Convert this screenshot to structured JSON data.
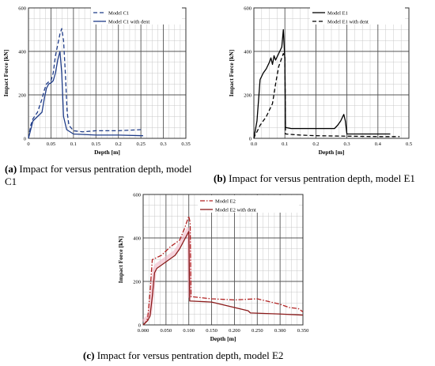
{
  "chart_data": [
    {
      "id": "c1",
      "type": "line",
      "xlabel": "Depth [m]",
      "ylabel": "Impact Force [kN]",
      "xlim": [
        0,
        0.35
      ],
      "ylim": [
        0,
        600
      ],
      "xticks": [
        0,
        0.05,
        0.1,
        0.15,
        0.2,
        0.25,
        0.3,
        0.35
      ],
      "xtick_labels": [
        "0",
        "0.05",
        "0.1",
        "0.15",
        "0.2",
        "0.25",
        "0.3",
        "0.35"
      ],
      "yticks": [
        0,
        200,
        400,
        600
      ],
      "ytick_labels": [
        "0",
        "200",
        "400",
        "600"
      ],
      "minor_x": 0.0125,
      "minor_y": 50,
      "legend_position": "top-right",
      "series": [
        {
          "name": "Model C1",
          "color": "#1f3c88",
          "style": "dashed",
          "points": [
            [
              0,
              0
            ],
            [
              0.005,
              60
            ],
            [
              0.01,
              90
            ],
            [
              0.02,
              120
            ],
            [
              0.03,
              180
            ],
            [
              0.035,
              220
            ],
            [
              0.04,
              250
            ],
            [
              0.045,
              260
            ],
            [
              0.05,
              265
            ],
            [
              0.055,
              300
            ],
            [
              0.06,
              380
            ],
            [
              0.065,
              430
            ],
            [
              0.07,
              480
            ],
            [
              0.074,
              505
            ],
            [
              0.078,
              450
            ],
            [
              0.082,
              300
            ],
            [
              0.086,
              120
            ],
            [
              0.09,
              60
            ],
            [
              0.1,
              35
            ],
            [
              0.12,
              30
            ],
            [
              0.15,
              35
            ],
            [
              0.2,
              35
            ],
            [
              0.25,
              40
            ]
          ]
        },
        {
          "name": "Model C1 with dent",
          "color": "#1f3c88",
          "style": "solid",
          "points": [
            [
              0,
              0
            ],
            [
              0.005,
              40
            ],
            [
              0.01,
              80
            ],
            [
              0.02,
              100
            ],
            [
              0.03,
              120
            ],
            [
              0.035,
              180
            ],
            [
              0.04,
              230
            ],
            [
              0.045,
              250
            ],
            [
              0.05,
              255
            ],
            [
              0.055,
              265
            ],
            [
              0.06,
              300
            ],
            [
              0.065,
              360
            ],
            [
              0.07,
              400
            ],
            [
              0.074,
              300
            ],
            [
              0.078,
              100
            ],
            [
              0.085,
              40
            ],
            [
              0.1,
              20
            ],
            [
              0.15,
              15
            ],
            [
              0.2,
              15
            ],
            [
              0.255,
              12
            ]
          ]
        }
      ]
    },
    {
      "id": "e1",
      "type": "line",
      "xlabel": "Depth [m]",
      "ylabel": "Impact Force [kN]",
      "xlim": [
        0,
        0.5
      ],
      "ylim": [
        0,
        600
      ],
      "xticks": [
        0,
        0.1,
        0.2,
        0.3,
        0.4,
        0.5
      ],
      "xtick_labels": [
        "0.0",
        "0.1",
        "0.2",
        "0.3",
        "0.4",
        "0.5"
      ],
      "yticks": [
        0,
        200,
        400,
        600
      ],
      "ytick_labels": [
        "0",
        "200",
        "400",
        "600"
      ],
      "minor_x": 0.025,
      "minor_y": 50,
      "legend_position": "top-right",
      "series": [
        {
          "name": "Model E1",
          "color": "#000000",
          "style": "solid",
          "points": [
            [
              0,
              0
            ],
            [
              0.005,
              40
            ],
            [
              0.01,
              80
            ],
            [
              0.02,
              270
            ],
            [
              0.03,
              300
            ],
            [
              0.04,
              320
            ],
            [
              0.05,
              350
            ],
            [
              0.055,
              370
            ],
            [
              0.06,
              340
            ],
            [
              0.065,
              380
            ],
            [
              0.07,
              360
            ],
            [
              0.08,
              390
            ],
            [
              0.09,
              420
            ],
            [
              0.095,
              500
            ],
            [
              0.1,
              360
            ],
            [
              0.102,
              50
            ],
            [
              0.12,
              45
            ],
            [
              0.2,
              45
            ],
            [
              0.26,
              45
            ],
            [
              0.27,
              60
            ],
            [
              0.28,
              80
            ],
            [
              0.29,
              110
            ],
            [
              0.295,
              80
            ],
            [
              0.3,
              20
            ],
            [
              0.35,
              20
            ],
            [
              0.4,
              20
            ],
            [
              0.44,
              20
            ]
          ]
        },
        {
          "name": "Model E1 with dent",
          "color": "#000000",
          "style": "dashed",
          "points": [
            [
              0,
              0
            ],
            [
              0.005,
              20
            ],
            [
              0.01,
              30
            ],
            [
              0.02,
              60
            ],
            [
              0.03,
              80
            ],
            [
              0.04,
              100
            ],
            [
              0.05,
              130
            ],
            [
              0.06,
              160
            ],
            [
              0.07,
              250
            ],
            [
              0.08,
              330
            ],
            [
              0.09,
              370
            ],
            [
              0.095,
              390
            ],
            [
              0.1,
              380
            ],
            [
              0.102,
              20
            ],
            [
              0.15,
              15
            ],
            [
              0.2,
              12
            ],
            [
              0.3,
              10
            ],
            [
              0.4,
              8
            ],
            [
              0.47,
              8
            ]
          ]
        }
      ]
    },
    {
      "id": "e2",
      "type": "line",
      "xlabel": "Depth [m]",
      "ylabel": "Impact Force [kN]",
      "xlim": [
        0,
        0.35
      ],
      "ylim": [
        0,
        600
      ],
      "xticks": [
        0,
        0.05,
        0.1,
        0.15,
        0.2,
        0.25,
        0.3,
        0.35
      ],
      "xtick_labels": [
        "0.000",
        "0.050",
        "0.100",
        "0.150",
        "0.200",
        "0.250",
        "0.300",
        "0.350"
      ],
      "yticks": [
        0,
        200,
        400,
        600
      ],
      "ytick_labels": [
        "0",
        "200",
        "400",
        "600"
      ],
      "minor_x": 0.0125,
      "minor_y": 50,
      "legend_position": "top-right",
      "series": [
        {
          "name": "Model E2",
          "color": "#b22222",
          "style": "dashdot",
          "points": [
            [
              0,
              0
            ],
            [
              0.005,
              10
            ],
            [
              0.01,
              30
            ],
            [
              0.015,
              150
            ],
            [
              0.02,
              300
            ],
            [
              0.03,
              310
            ],
            [
              0.04,
              320
            ],
            [
              0.05,
              340
            ],
            [
              0.06,
              360
            ],
            [
              0.07,
              375
            ],
            [
              0.08,
              390
            ],
            [
              0.09,
              440
            ],
            [
              0.1,
              500
            ],
            [
              0.103,
              470
            ],
            [
              0.105,
              130
            ],
            [
              0.15,
              120
            ],
            [
              0.2,
              115
            ],
            [
              0.25,
              120
            ],
            [
              0.27,
              110
            ],
            [
              0.3,
              95
            ],
            [
              0.32,
              80
            ],
            [
              0.34,
              75
            ],
            [
              0.35,
              60
            ]
          ]
        },
        {
          "name": "Model E2 with dent",
          "color": "#8b1a1a",
          "style": "solid",
          "points": [
            [
              0,
              0
            ],
            [
              0.01,
              20
            ],
            [
              0.015,
              40
            ],
            [
              0.02,
              130
            ],
            [
              0.025,
              240
            ],
            [
              0.03,
              260
            ],
            [
              0.04,
              275
            ],
            [
              0.05,
              290
            ],
            [
              0.06,
              305
            ],
            [
              0.07,
              320
            ],
            [
              0.08,
              350
            ],
            [
              0.09,
              390
            ],
            [
              0.1,
              430
            ],
            [
              0.102,
              110
            ],
            [
              0.15,
              105
            ],
            [
              0.2,
              80
            ],
            [
              0.23,
              65
            ],
            [
              0.235,
              55
            ],
            [
              0.3,
              50
            ],
            [
              0.35,
              45
            ]
          ]
        }
      ]
    }
  ],
  "captions": {
    "a": {
      "label": "(a)",
      "text": " Impact for versus pentration depth, model C1"
    },
    "b": {
      "label": "(b)",
      "text": " Impact for versus pentration depth, model E1"
    },
    "c": {
      "label": "(c)",
      "text": " Impact for versus pentration depth, model E2"
    }
  }
}
